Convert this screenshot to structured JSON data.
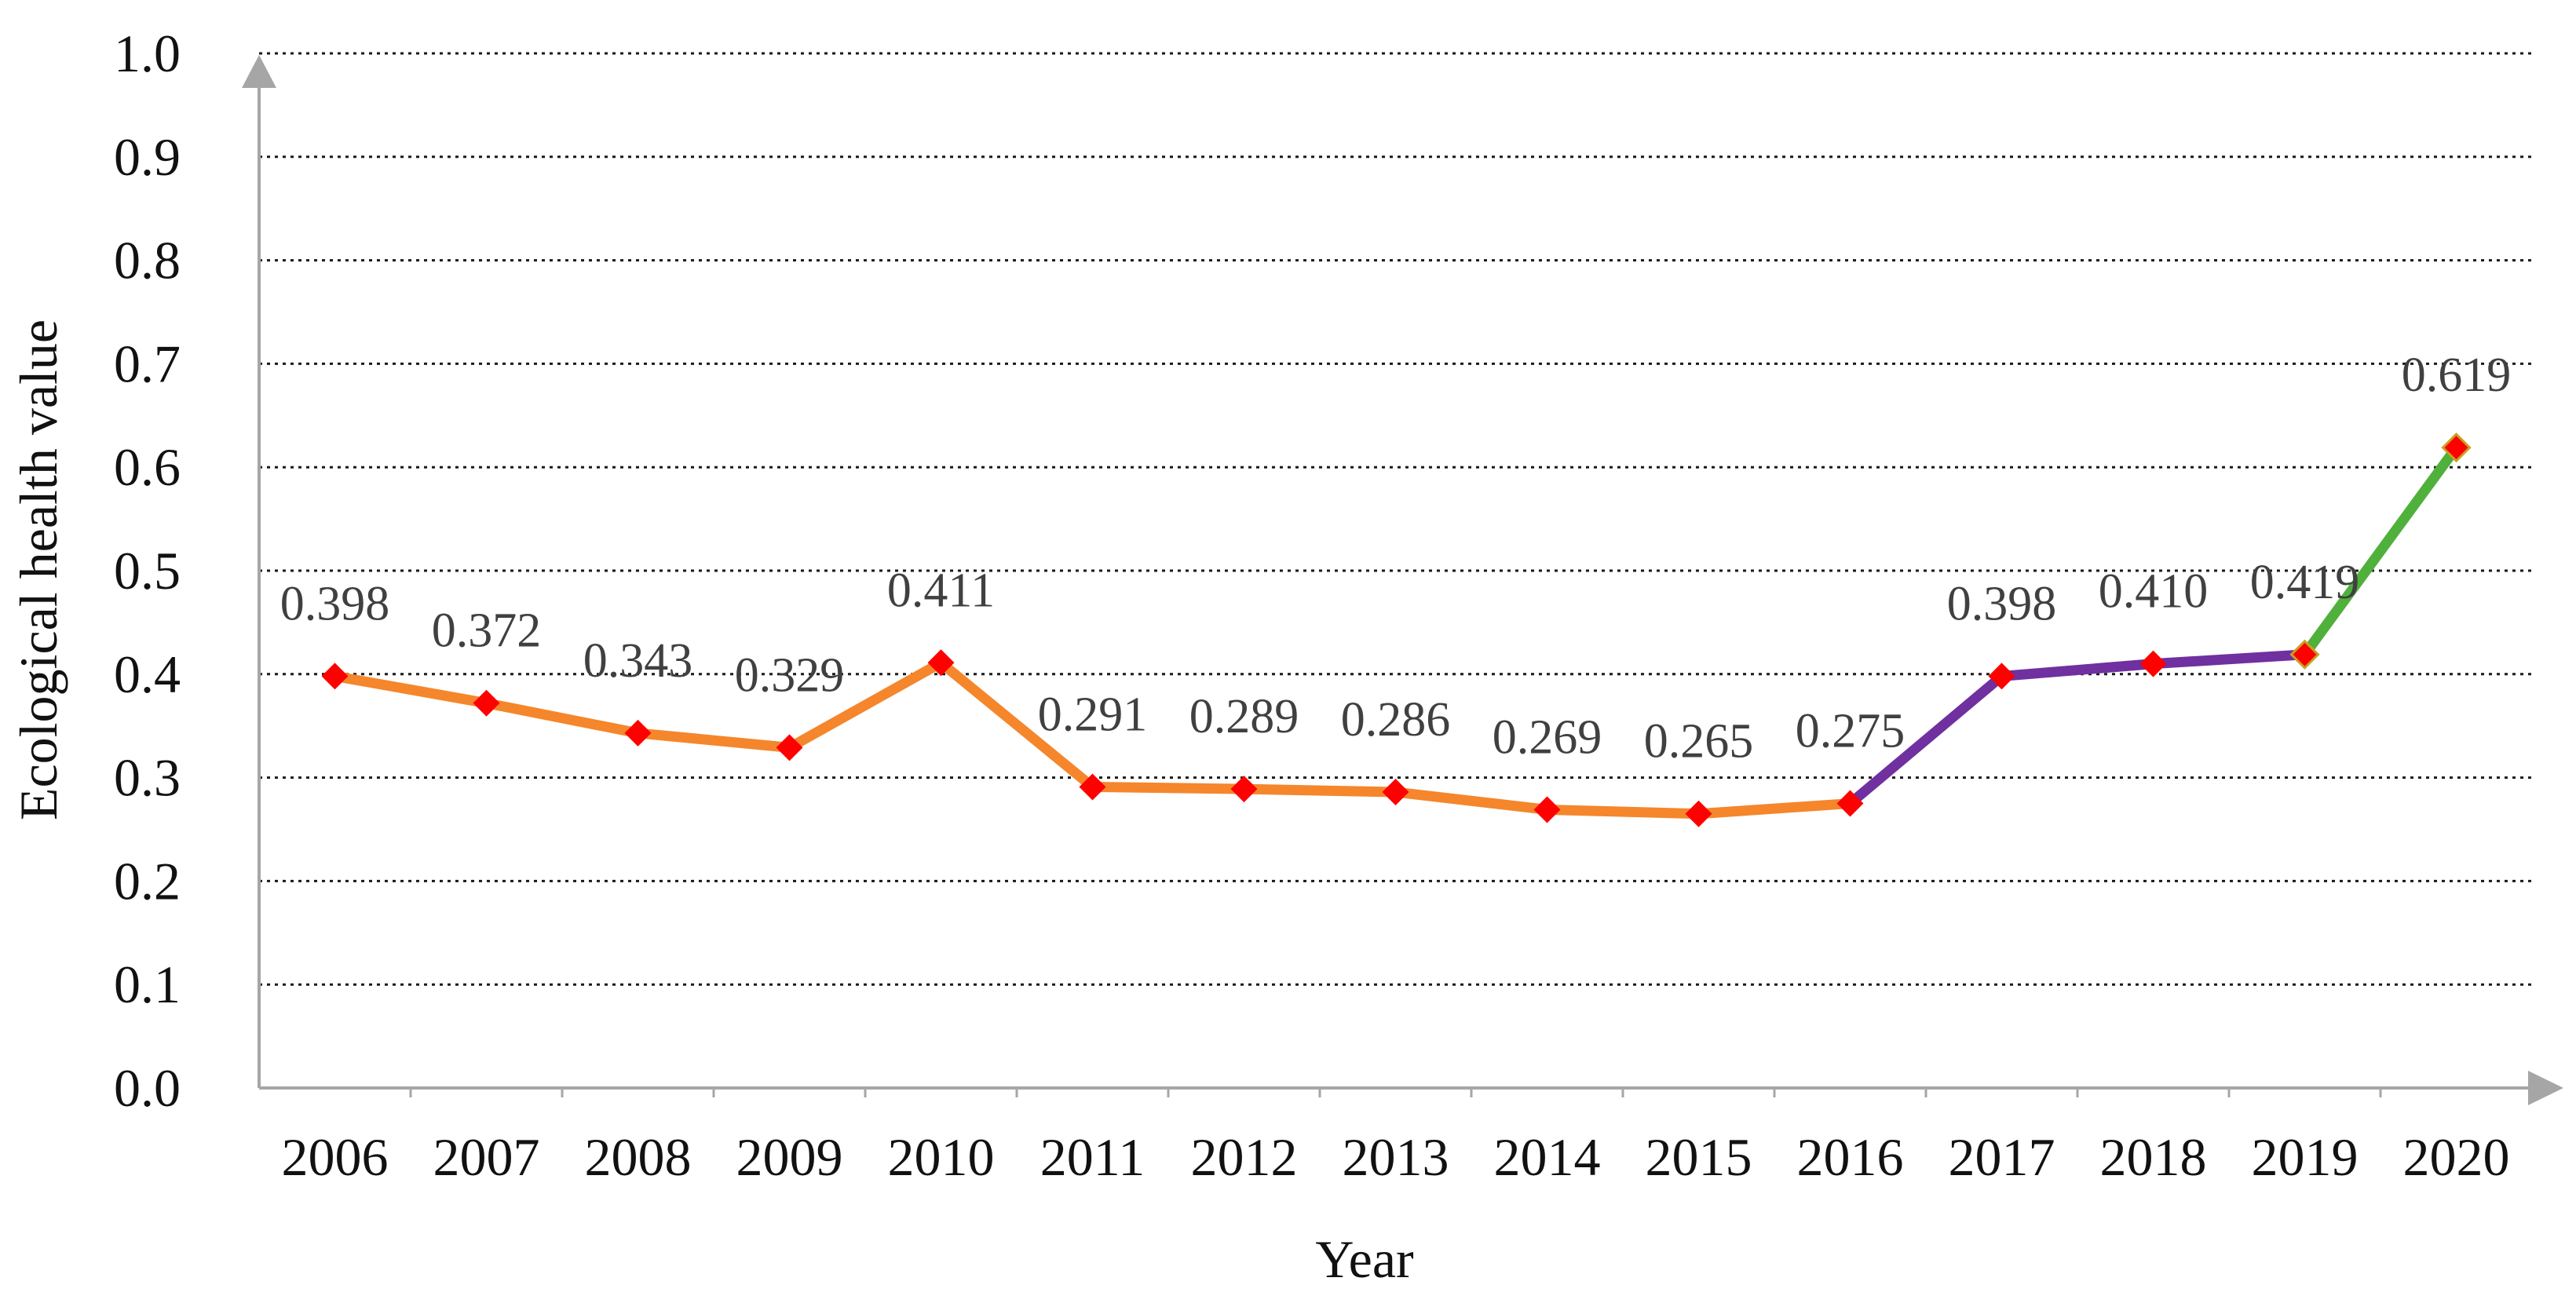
{
  "chart_data": {
    "type": "line",
    "title": "",
    "xlabel": "Year",
    "ylabel": "Ecological health value",
    "categories": [
      "2006",
      "2007",
      "2008",
      "2009",
      "2010",
      "2011",
      "2012",
      "2013",
      "2014",
      "2015",
      "2016",
      "2017",
      "2018",
      "2019",
      "2020"
    ],
    "values": [
      0.398,
      0.372,
      0.343,
      0.329,
      0.411,
      0.291,
      0.289,
      0.286,
      0.269,
      0.265,
      0.275,
      0.398,
      0.41,
      0.419,
      0.619
    ],
    "data_labels": [
      "0.398",
      "0.372",
      "0.343",
      "0.329",
      "0.411",
      "0.291",
      "0.289",
      "0.286",
      "0.269",
      "0.265",
      "0.275",
      "0.398",
      "0.410",
      "0.419",
      "0.619"
    ],
    "ylim": [
      0.0,
      1.0
    ],
    "yticks": [
      "0.0",
      "0.1",
      "0.2",
      "0.3",
      "0.4",
      "0.5",
      "0.6",
      "0.7",
      "0.8",
      "0.9",
      "1.0"
    ],
    "grid": "horizontal dotted",
    "legend": "none",
    "segments": [
      {
        "from": "2006",
        "to": "2016",
        "color": "#f5862c"
      },
      {
        "from": "2016",
        "to": "2019",
        "color": "#7030a0"
      },
      {
        "from": "2019",
        "to": "2020",
        "color": "#50b03c"
      }
    ],
    "marker": {
      "shape": "diamond",
      "color": "#ff0000"
    },
    "colors": {
      "axis": "#a6a6a6",
      "grid": "#1a1a1a",
      "text": "#111111",
      "data_label": "#404040"
    }
  }
}
